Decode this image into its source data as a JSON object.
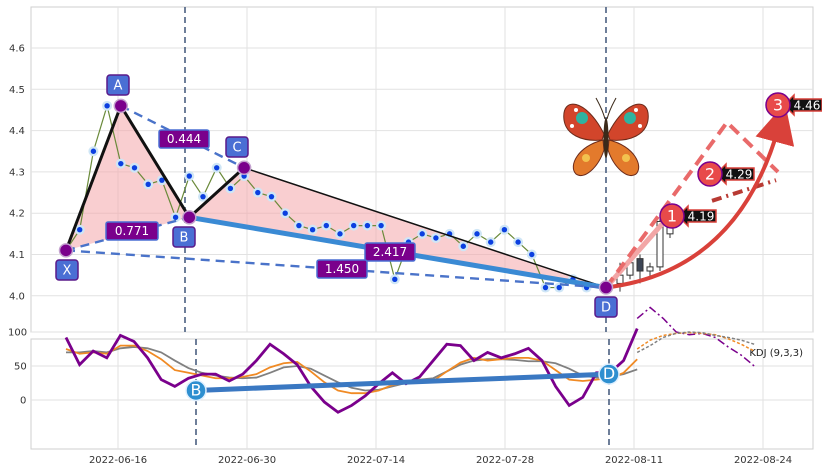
{
  "chart_data": [
    {
      "type": "line",
      "title": "",
      "xlabel": "",
      "ylabel": "",
      "ylim": [
        3.91,
        4.7
      ],
      "y_ticks": [
        "4.0",
        "4.1",
        "4.2",
        "4.3",
        "4.4",
        "4.5",
        "4.6"
      ],
      "grid": true,
      "vertical_markers": [
        "2022-06-22",
        "2022-08-05"
      ],
      "price_series": [
        4.11,
        4.16,
        4.35,
        4.46,
        4.32,
        4.31,
        4.27,
        4.28,
        4.19,
        4.29,
        4.24,
        4.31,
        4.26,
        4.29,
        4.25,
        4.24,
        4.2,
        4.17,
        4.16,
        4.17,
        4.15,
        4.17,
        4.17,
        4.17,
        4.04,
        4.13,
        4.15,
        4.14,
        4.15,
        4.12,
        4.15,
        4.13,
        4.16,
        4.13,
        4.1,
        4.02,
        4.02,
        4.04,
        4.02
      ],
      "pattern_points": [
        {
          "label": "X",
          "value": 4.11
        },
        {
          "label": "A",
          "value": 4.46
        },
        {
          "label": "B",
          "value": 4.19
        },
        {
          "label": "C",
          "value": 4.31
        },
        {
          "label": "D",
          "value": 4.02
        }
      ],
      "ratios": [
        "0.444",
        "0.771",
        "2.417",
        "1.450"
      ],
      "candles": [
        {
          "open": 4.03,
          "close": 4.05,
          "high": 4.08,
          "low": 4.01
        },
        {
          "open": 4.05,
          "close": 4.08,
          "high": 4.1,
          "low": 4.04
        },
        {
          "open": 4.09,
          "close": 4.06,
          "high": 4.1,
          "low": 4.03
        },
        {
          "open": 4.06,
          "close": 4.07,
          "high": 4.08,
          "low": 4.04
        },
        {
          "open": 4.07,
          "close": 4.18,
          "high": 4.19,
          "low": 4.06
        },
        {
          "open": 4.15,
          "close": 4.17,
          "high": 4.2,
          "low": 4.14
        }
      ],
      "targets": [
        {
          "number": "1",
          "value": "4.19"
        },
        {
          "number": "2",
          "value": "4.29"
        },
        {
          "number": "3",
          "value": "4.46"
        }
      ]
    },
    {
      "type": "line",
      "title": "",
      "legend_text": "KDJ (9,3,3)",
      "ylim": [
        -30,
        140
      ],
      "y_ticks": [
        "0",
        "50",
        "100"
      ],
      "x_ticks": [
        "2022-06-16",
        "2022-06-30",
        "2022-07-14",
        "2022-07-28",
        "2022-08-11",
        "2022-08-24"
      ],
      "divergence_points": [
        "B",
        "D"
      ],
      "series": [
        {
          "color": "#808080",
          "values": [
            70,
            70,
            72,
            70,
            76,
            78,
            76,
            70,
            58,
            47,
            40,
            36,
            33,
            32,
            33,
            40,
            48,
            50,
            46,
            36,
            26,
            18,
            14,
            15,
            20,
            25,
            30,
            32,
            42,
            52,
            58,
            60,
            60,
            59,
            57,
            57,
            54,
            46,
            36,
            33,
            34,
            38,
            45
          ]
        },
        {
          "color": "#f08a24",
          "values": [
            75,
            68,
            70,
            68,
            80,
            80,
            72,
            60,
            44,
            40,
            36,
            32,
            32,
            34,
            38,
            48,
            54,
            56,
            42,
            26,
            14,
            10,
            10,
            14,
            22,
            26,
            30,
            28,
            42,
            55,
            62,
            58,
            60,
            62,
            62,
            58,
            44,
            30,
            28,
            30,
            32,
            40,
            60
          ]
        },
        {
          "color": "#7a008c",
          "values": [
            92,
            52,
            72,
            62,
            95,
            86,
            62,
            30,
            20,
            32,
            38,
            38,
            28,
            38,
            58,
            82,
            68,
            52,
            20,
            -3,
            -18,
            -8,
            6,
            24,
            40,
            24,
            34,
            58,
            82,
            80,
            58,
            70,
            62,
            68,
            76,
            58,
            20,
            -8,
            4,
            40,
            40,
            58,
            105
          ]
        },
        {
          "color": "#3a78c2",
          "values": [
            14,
            38
          ]
        }
      ],
      "projection": [
        {
          "color": "#7a008c",
          "values": [
            120,
            136,
            120,
            100,
            96,
            98,
            92,
            78,
            66,
            50
          ]
        },
        {
          "color": "#f08a24",
          "values": [
            75,
            88,
            95,
            98,
            99,
            98,
            96,
            90,
            82,
            72
          ]
        },
        {
          "color": "#808080",
          "values": [
            70,
            80,
            92,
            98,
            100,
            99,
            95,
            92,
            88,
            82
          ]
        }
      ]
    }
  ]
}
